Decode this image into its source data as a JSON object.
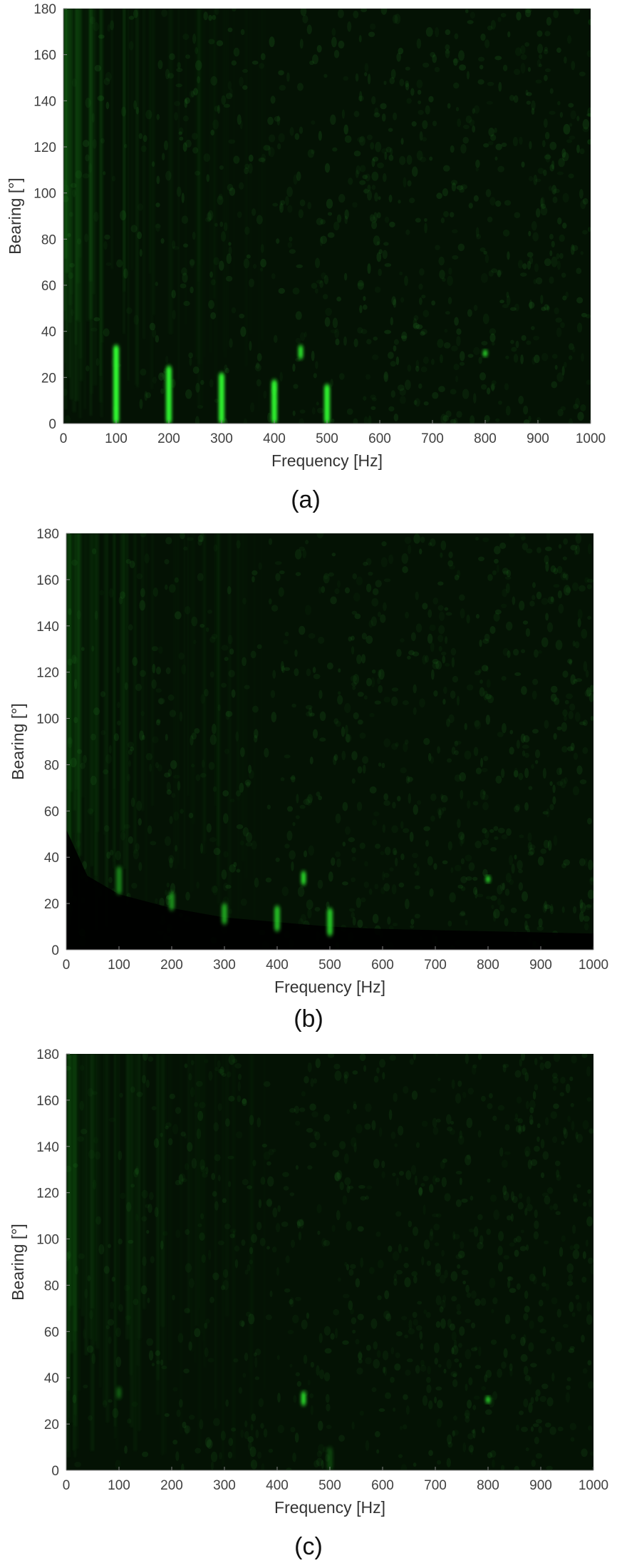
{
  "chart_data": [
    {
      "type": "heatmap",
      "panel_label": "(a)",
      "xlabel": "Frequency [Hz]",
      "ylabel": "Bearing [°]",
      "xlim": [
        0,
        1000
      ],
      "ylim": [
        0,
        180
      ],
      "xticks": [
        0,
        100,
        200,
        300,
        400,
        500,
        600,
        700,
        800,
        900,
        1000
      ],
      "yticks": [
        0,
        20,
        40,
        60,
        80,
        100,
        120,
        140,
        160,
        180
      ],
      "background_color": "#041204",
      "peak_color": "#33ff33",
      "noise_level": 1.0,
      "shadow_edge": [],
      "peaks": [
        {
          "frequency": 100,
          "bearing_min": 0,
          "bearing_max": 34,
          "intensity": 1.0
        },
        {
          "frequency": 200,
          "bearing_min": 0,
          "bearing_max": 25,
          "intensity": 0.95
        },
        {
          "frequency": 300,
          "bearing_min": 0,
          "bearing_max": 22,
          "intensity": 0.95
        },
        {
          "frequency": 400,
          "bearing_min": 0,
          "bearing_max": 19,
          "intensity": 0.95
        },
        {
          "frequency": 500,
          "bearing_min": 0,
          "bearing_max": 17,
          "intensity": 0.95
        },
        {
          "frequency": 450,
          "bearing_min": 28,
          "bearing_max": 34,
          "intensity": 0.85
        },
        {
          "frequency": 800,
          "bearing_min": 29,
          "bearing_max": 32,
          "intensity": 0.8
        }
      ]
    },
    {
      "type": "heatmap",
      "panel_label": "(b)",
      "xlabel": "Frequency [Hz]",
      "ylabel": "Bearing [°]",
      "xlim": [
        0,
        1000
      ],
      "ylim": [
        0,
        180
      ],
      "xticks": [
        0,
        100,
        200,
        300,
        400,
        500,
        600,
        700,
        800,
        900,
        1000
      ],
      "yticks": [
        0,
        20,
        40,
        60,
        80,
        100,
        120,
        140,
        160,
        180
      ],
      "background_color": "#041204",
      "peak_color": "#33ff33",
      "noise_level": 0.9,
      "shadow_edge": [
        [
          0,
          52
        ],
        [
          40,
          32
        ],
        [
          100,
          24
        ],
        [
          200,
          18
        ],
        [
          300,
          14
        ],
        [
          400,
          12
        ],
        [
          500,
          10
        ],
        [
          600,
          9
        ],
        [
          800,
          8
        ],
        [
          1000,
          7
        ]
      ],
      "peaks": [
        {
          "frequency": 100,
          "bearing_min": 24,
          "bearing_max": 36,
          "intensity": 0.45
        },
        {
          "frequency": 200,
          "bearing_min": 17,
          "bearing_max": 25,
          "intensity": 0.5
        },
        {
          "frequency": 300,
          "bearing_min": 11,
          "bearing_max": 20,
          "intensity": 0.6
        },
        {
          "frequency": 400,
          "bearing_min": 8,
          "bearing_max": 19,
          "intensity": 0.7
        },
        {
          "frequency": 500,
          "bearing_min": 6,
          "bearing_max": 18,
          "intensity": 0.75
        },
        {
          "frequency": 450,
          "bearing_min": 28,
          "bearing_max": 34,
          "intensity": 0.8
        },
        {
          "frequency": 800,
          "bearing_min": 29,
          "bearing_max": 32,
          "intensity": 0.8
        }
      ]
    },
    {
      "type": "heatmap",
      "panel_label": "(c)",
      "xlabel": "Frequency [Hz]",
      "ylabel": "Bearing [°]",
      "xlim": [
        0,
        1000
      ],
      "ylim": [
        0,
        180
      ],
      "xticks": [
        0,
        100,
        200,
        300,
        400,
        500,
        600,
        700,
        800,
        900,
        1000
      ],
      "yticks": [
        0,
        20,
        40,
        60,
        80,
        100,
        120,
        140,
        160,
        180
      ],
      "background_color": "#041204",
      "peak_color": "#33ff33",
      "noise_level": 0.8,
      "shadow_edge": [],
      "peaks": [
        {
          "frequency": 100,
          "bearing_min": 31,
          "bearing_max": 36,
          "intensity": 0.3
        },
        {
          "frequency": 450,
          "bearing_min": 28,
          "bearing_max": 34,
          "intensity": 0.8
        },
        {
          "frequency": 800,
          "bearing_min": 29,
          "bearing_max": 32,
          "intensity": 0.8
        },
        {
          "frequency": 500,
          "bearing_min": 0,
          "bearing_max": 10,
          "intensity": 0.2
        }
      ]
    }
  ]
}
